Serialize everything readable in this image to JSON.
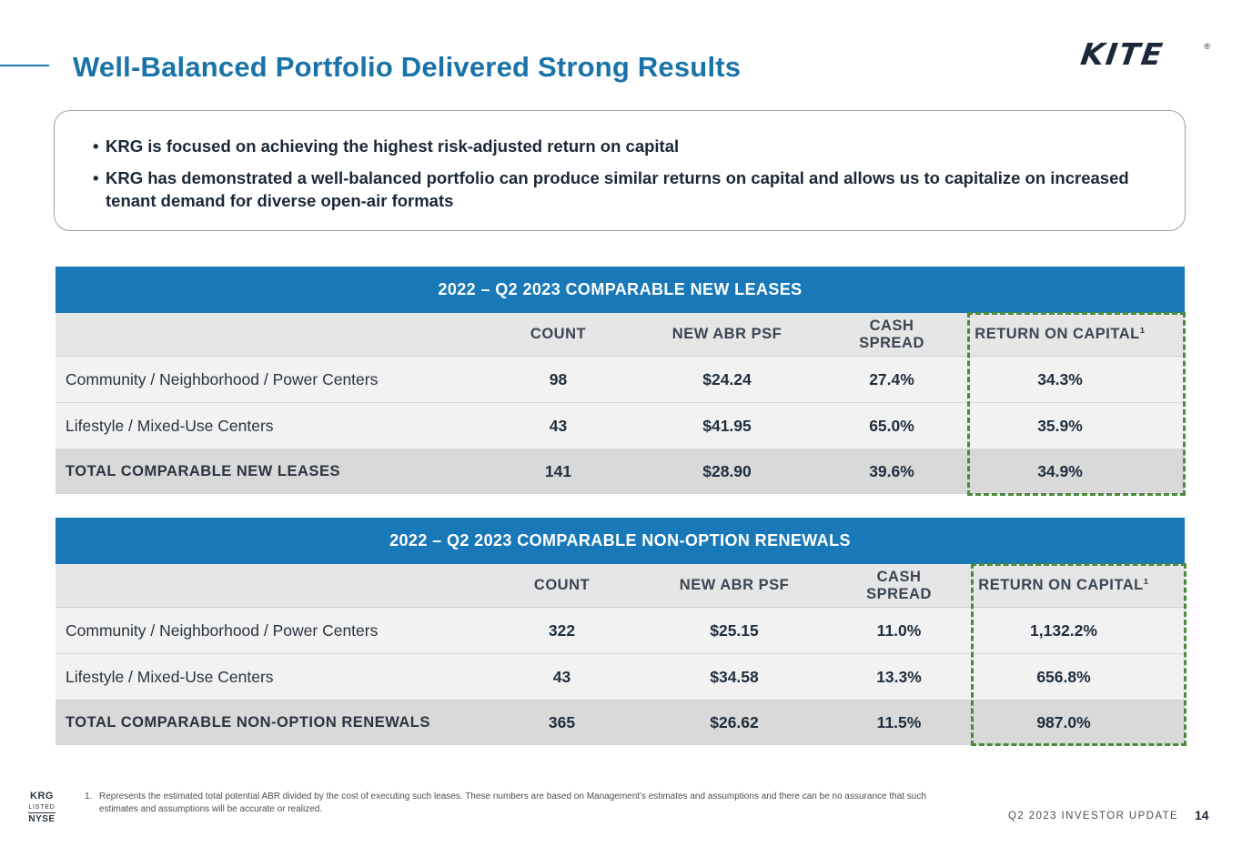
{
  "title": "Well-Balanced Portfolio Delivered Strong Results",
  "logo": {
    "text": "KITE",
    "registered": "®"
  },
  "callout": {
    "bullets": [
      "KRG is focused on achieving the highest risk-adjusted return on capital",
      "KRG has demonstrated a well-balanced portfolio can produce similar returns on capital and allows us to capitalize on increased tenant demand for diverse open-air formats"
    ]
  },
  "table_new_leases": {
    "title": "2022 – Q2 2023 COMPARABLE NEW LEASES",
    "columns": [
      "",
      "COUNT",
      "NEW ABR PSF",
      "CASH SPREAD",
      "RETURN ON CAPITAL¹"
    ],
    "rows": [
      [
        "Community / Neighborhood / Power Centers",
        "98",
        "$24.24",
        "27.4%",
        "34.3%"
      ],
      [
        "Lifestyle / Mixed-Use Centers",
        "43",
        "$41.95",
        "65.0%",
        "35.9%"
      ],
      [
        "TOTAL COMPARABLE NEW LEASES",
        "141",
        "$28.90",
        "39.6%",
        "34.9%"
      ]
    ]
  },
  "table_renewals": {
    "title": "2022 – Q2 2023 COMPARABLE NON-OPTION RENEWALS",
    "columns": [
      "",
      "COUNT",
      "NEW ABR PSF",
      "CASH SPREAD",
      "RETURN ON CAPITAL¹"
    ],
    "rows": [
      [
        "Community / Neighborhood / Power Centers",
        "322",
        "$25.15",
        "11.0%",
        "1,132.2%"
      ],
      [
        "Lifestyle / Mixed-Use Centers",
        "43",
        "$34.58",
        "13.3%",
        "656.8%"
      ],
      [
        "TOTAL COMPARABLE NON-OPTION RENEWALS",
        "365",
        "$26.62",
        "11.5%",
        "987.0%"
      ]
    ]
  },
  "footnote": {
    "number": "1.",
    "text": "Represents the estimated total potential ABR divided by the cost of executing such leases. These numbers are based on Management's estimates and assumptions and there can be no assurance that such estimates and assumptions will be accurate or realized."
  },
  "badge": {
    "ticker": "KRG",
    "listed": "LISTED",
    "exchange": "NYSE"
  },
  "footer": {
    "label": "Q2 2023 INVESTOR UPDATE",
    "page": "14"
  },
  "colors": {
    "brand_blue": "#1878b8",
    "title_blue": "#1a73a8",
    "highlight_green": "#4a8a3a"
  }
}
